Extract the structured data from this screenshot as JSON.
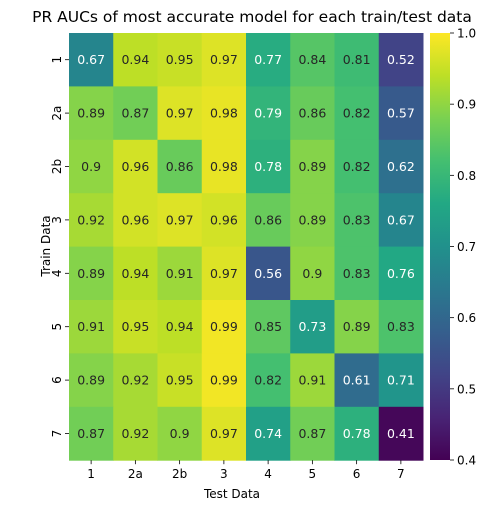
{
  "chart_data": {
    "type": "heatmap",
    "title": "PR AUCs of most accurate model for each train/test data",
    "xlabel": "Test Data",
    "ylabel": "Train Data",
    "x_categories": [
      "1",
      "2a",
      "2b",
      "3",
      "4",
      "5",
      "6",
      "7"
    ],
    "y_categories": [
      "1",
      "2a",
      "2b",
      "3",
      "4",
      "5",
      "6",
      "7"
    ],
    "values": [
      [
        0.67,
        0.94,
        0.95,
        0.97,
        0.77,
        0.84,
        0.81,
        0.52
      ],
      [
        0.89,
        0.87,
        0.97,
        0.98,
        0.79,
        0.86,
        0.82,
        0.57
      ],
      [
        0.9,
        0.96,
        0.86,
        0.98,
        0.78,
        0.89,
        0.82,
        0.62
      ],
      [
        0.92,
        0.96,
        0.97,
        0.96,
        0.86,
        0.89,
        0.83,
        0.67
      ],
      [
        0.89,
        0.94,
        0.91,
        0.97,
        0.56,
        0.9,
        0.83,
        0.76
      ],
      [
        0.91,
        0.95,
        0.94,
        0.99,
        0.85,
        0.73,
        0.89,
        0.83
      ],
      [
        0.89,
        0.92,
        0.95,
        0.99,
        0.82,
        0.91,
        0.61,
        0.71
      ],
      [
        0.87,
        0.92,
        0.9,
        0.97,
        0.74,
        0.87,
        0.78,
        0.41
      ]
    ],
    "colorbar": {
      "min": 0.4,
      "max": 1.0,
      "ticks": [
        0.4,
        0.5,
        0.6,
        0.7,
        0.8,
        0.9,
        1.0
      ],
      "tick_labels": [
        "0.4",
        "0.5",
        "0.6",
        "0.7",
        "0.8",
        "0.9",
        "1.0"
      ],
      "colormap": "viridis"
    },
    "grid": false,
    "legend": "none"
  }
}
